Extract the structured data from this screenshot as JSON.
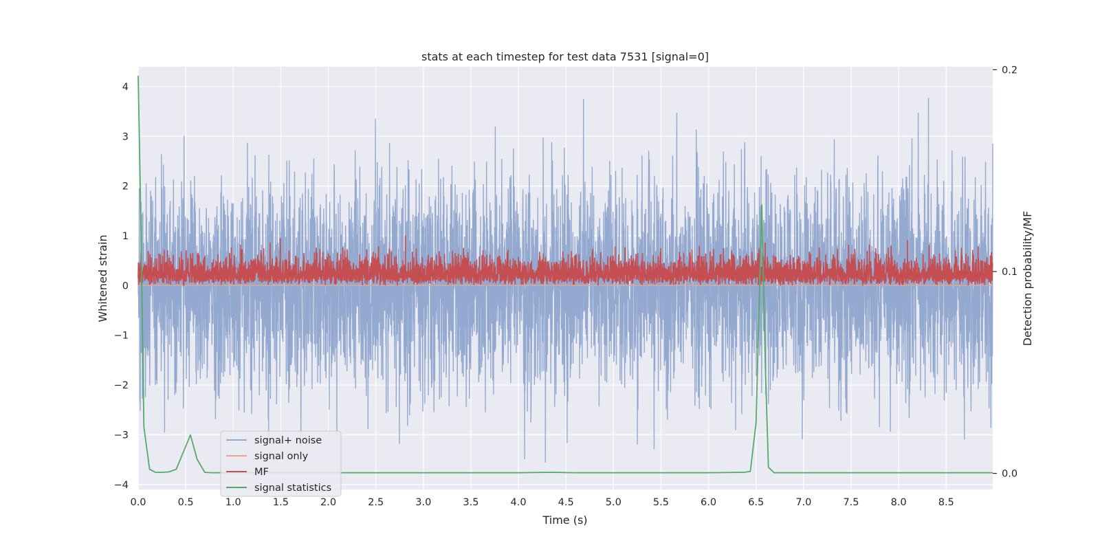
{
  "chart_data": {
    "type": "line",
    "title": "stats at each timestep for test data 7531 [signal=0]",
    "xlabel": "Time (s)",
    "ylabel": "Whitened strain",
    "y2label": "Detection probability/MF",
    "xlim": [
      0.0,
      8.99
    ],
    "ylim": [
      -4.1,
      4.4
    ],
    "y2lim": [
      -0.008,
      0.2015
    ],
    "x_ticks": [
      "0.0",
      "0.5",
      "1.0",
      "1.5",
      "2.0",
      "2.5",
      "3.0",
      "3.5",
      "4.0",
      "4.5",
      "5.0",
      "5.5",
      "6.0",
      "6.5",
      "7.0",
      "7.5",
      "8.0",
      "8.5"
    ],
    "y_ticks": [
      "4",
      "3",
      "2",
      "1",
      "0",
      "−1",
      "−2",
      "−3",
      "−4"
    ],
    "y2_ticks": [
      "0.2",
      "0.1",
      "0.0"
    ],
    "grid": true,
    "legend_position": "lower-left",
    "legend": [
      "signal+ noise",
      "signal only",
      "MF",
      "signal statistics"
    ],
    "colors": {
      "signal_noise": "#94a9cf",
      "signal_only": "#e9a58a",
      "mf": "#c44e52",
      "stats": "#55a868",
      "axes_bg": "#eaeaf2",
      "grid": "#ffffff"
    },
    "series": [
      {
        "name": "signal+ noise",
        "axis": "left",
        "description": "dense whitened strain noise, roughly Gaussian, peaks near ±4",
        "approx_range": [
          -3.7,
          4.0
        ]
      },
      {
        "name": "signal only",
        "axis": "left",
        "values_note": "flat at 0 (signal=0)",
        "approx_value": 0.0
      },
      {
        "name": "MF",
        "axis": "left",
        "description": "matched filter output, mostly between 0 and 0.8",
        "approx_range": [
          0.0,
          1.0
        ]
      },
      {
        "name": "signal statistics",
        "axis": "right",
        "x": [
          0.0,
          0.03,
          0.06,
          0.12,
          0.18,
          0.25,
          0.32,
          0.4,
          0.47,
          0.55,
          0.62,
          0.7,
          0.77,
          1.0,
          1.5,
          2.0,
          2.5,
          3.0,
          3.5,
          4.0,
          4.35,
          4.6,
          5.0,
          5.5,
          6.0,
          6.38,
          6.44,
          6.5,
          6.56,
          6.6,
          6.63,
          6.69,
          7.0,
          7.5,
          8.0,
          8.5,
          8.99
        ],
        "values": [
          0.197,
          0.12,
          0.023,
          0.002,
          0.0005,
          0.0005,
          0.0007,
          0.002,
          0.01,
          0.019,
          0.007,
          0.0005,
          0.0003,
          0.0003,
          0.0003,
          0.0003,
          0.0003,
          0.0003,
          0.0003,
          0.0003,
          0.0005,
          0.0003,
          0.0003,
          0.0003,
          0.0003,
          0.0005,
          0.001,
          0.025,
          0.133,
          0.05,
          0.003,
          0.0003,
          0.0003,
          0.0003,
          0.0003,
          0.0003,
          0.0003
        ]
      }
    ]
  }
}
